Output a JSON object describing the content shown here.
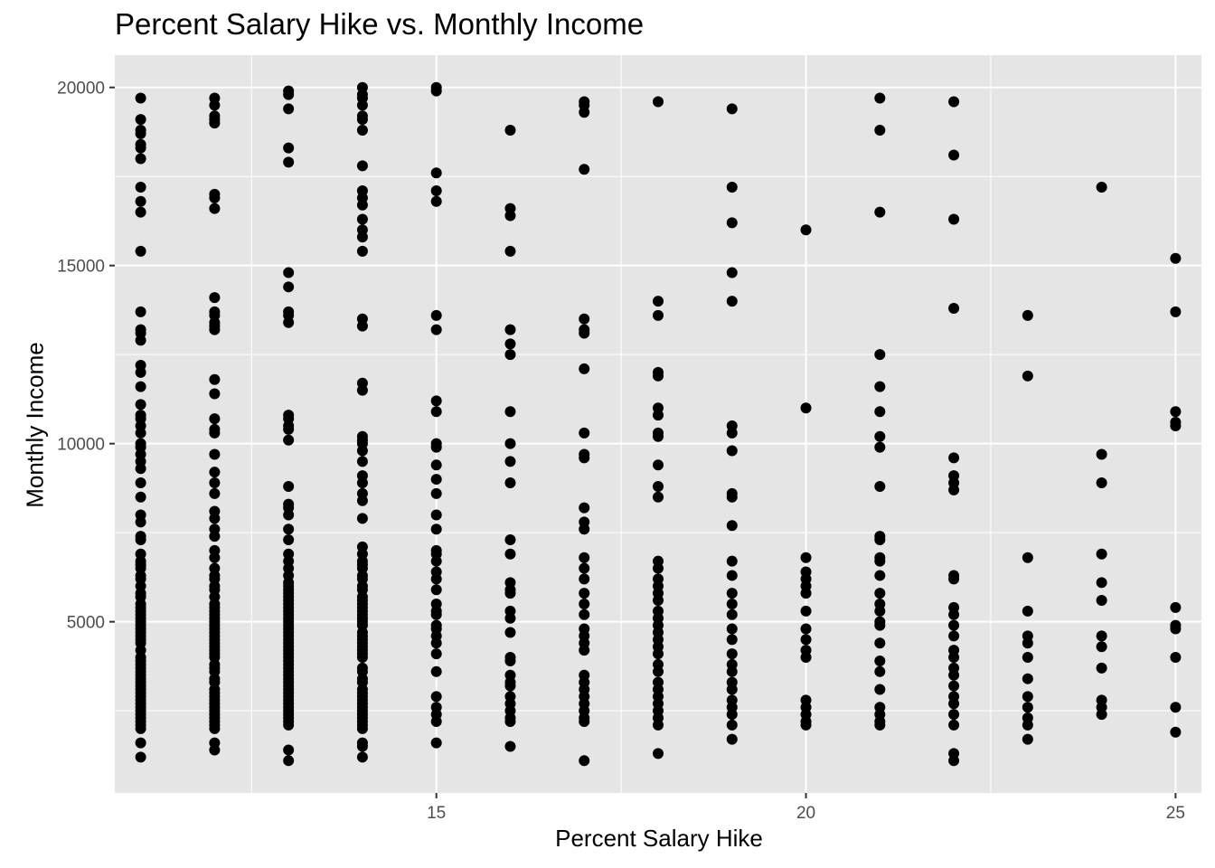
{
  "chart_data": {
    "type": "scatter",
    "title": "Percent Salary Hike vs. Monthly Income",
    "xlabel": "Percent Salary Hike",
    "ylabel": "Monthly Income",
    "xlim": [
      10.65,
      25.35
    ],
    "ylim": [
      194,
      20906
    ],
    "x_ticks": [
      15,
      20,
      25
    ],
    "y_ticks": [
      5000,
      10000,
      15000,
      20000
    ],
    "grid": true,
    "panel_background": "#e5e5e5",
    "grid_color": "#ffffff",
    "point_color": "#000000",
    "points": [
      {
        "x": 11,
        "y": [
          1200,
          1600,
          2000,
          2100,
          2200,
          2300,
          2400,
          2500,
          2600,
          2700,
          2800,
          2900,
          3000,
          3100,
          3200,
          3300,
          3400,
          3500,
          3600,
          3700,
          3800,
          3900,
          4000,
          4200,
          4400,
          4500,
          4600,
          4700,
          4800,
          4900,
          5000,
          5100,
          5200,
          5300,
          5400,
          5500,
          5700,
          5800,
          6000,
          6200,
          6300,
          6500,
          6600,
          6700,
          6900,
          7300,
          7400,
          7800,
          8000,
          8500,
          8900,
          9300,
          9500,
          9700,
          9900,
          10000,
          10300,
          10500,
          10700,
          10800,
          11100,
          11600,
          12000,
          12200,
          12900,
          13100,
          13200,
          13700,
          15400,
          16500,
          16800,
          17200,
          18000,
          18300,
          18400,
          18700,
          18800,
          19100,
          19700
        ]
      },
      {
        "x": 12,
        "y": [
          1400,
          1600,
          2000,
          2100,
          2200,
          2300,
          2400,
          2500,
          2600,
          2700,
          2800,
          2900,
          3000,
          3100,
          3300,
          3400,
          3600,
          3700,
          3800,
          4000,
          4100,
          4200,
          4300,
          4400,
          4500,
          4600,
          4700,
          4800,
          4900,
          5000,
          5100,
          5200,
          5300,
          5400,
          5500,
          5700,
          5900,
          6000,
          6200,
          6300,
          6500,
          6800,
          7000,
          7400,
          7600,
          7900,
          8100,
          8600,
          8900,
          9200,
          9700,
          10300,
          10400,
          10700,
          11400,
          11800,
          13200,
          13300,
          13400,
          13600,
          13700,
          14100,
          16600,
          16900,
          17000,
          19000,
          19100,
          19200,
          19500,
          19700
        ]
      },
      {
        "x": 13,
        "y": [
          1100,
          1400,
          2100,
          2200,
          2300,
          2400,
          2500,
          2600,
          2700,
          2800,
          2900,
          3000,
          3100,
          3200,
          3300,
          3400,
          3500,
          3600,
          3700,
          3800,
          3900,
          4000,
          4100,
          4200,
          4300,
          4400,
          4500,
          4600,
          4700,
          4800,
          4900,
          5000,
          5100,
          5200,
          5300,
          5400,
          5500,
          5600,
          5700,
          5800,
          5900,
          6000,
          6100,
          6300,
          6500,
          6700,
          6900,
          7300,
          7600,
          8000,
          8200,
          8300,
          8800,
          10100,
          10400,
          10500,
          10700,
          10800,
          13400,
          13600,
          13700,
          14400,
          14800,
          17900,
          18300,
          19400,
          19800,
          19900
        ]
      },
      {
        "x": 14,
        "y": [
          1200,
          1500,
          1600,
          2000,
          2100,
          2200,
          2300,
          2400,
          2500,
          2600,
          2700,
          2800,
          2900,
          3000,
          3100,
          3300,
          3400,
          3600,
          3700,
          4000,
          4100,
          4200,
          4300,
          4400,
          4500,
          4600,
          4700,
          4900,
          5000,
          5100,
          5200,
          5300,
          5400,
          5500,
          5600,
          5700,
          5900,
          6000,
          6200,
          6300,
          6500,
          6600,
          6700,
          6900,
          7100,
          7900,
          8400,
          8600,
          8900,
          9100,
          9500,
          9800,
          10000,
          10100,
          10200,
          11500,
          11700,
          13300,
          13500,
          15400,
          15800,
          16000,
          16300,
          16700,
          16900,
          17100,
          17800,
          18800,
          19100,
          19200,
          19500,
          19700,
          19800,
          20000
        ]
      },
      {
        "x": 15,
        "y": [
          1600,
          2200,
          2400,
          2600,
          2900,
          3600,
          4100,
          4400,
          4600,
          4800,
          4900,
          5200,
          5300,
          5500,
          5900,
          6200,
          6400,
          6700,
          6900,
          7000,
          7600,
          8000,
          8600,
          9000,
          9400,
          9900,
          10000,
          10900,
          11200,
          13200,
          13600,
          16800,
          17100,
          17600,
          19900,
          20000
        ]
      },
      {
        "x": 16,
        "y": [
          1500,
          2200,
          2300,
          2500,
          2700,
          2900,
          3200,
          3300,
          3500,
          3900,
          4000,
          4700,
          5100,
          5300,
          5800,
          5900,
          6100,
          6900,
          7300,
          8900,
          9500,
          10000,
          10900,
          12500,
          12800,
          13200,
          15400,
          16400,
          16600,
          18800
        ]
      },
      {
        "x": 17,
        "y": [
          1100,
          2200,
          2300,
          2500,
          2700,
          2900,
          3100,
          3300,
          3500,
          4200,
          4400,
          4600,
          4800,
          5200,
          5500,
          5800,
          6200,
          6500,
          6800,
          7600,
          7800,
          8200,
          9600,
          9700,
          10300,
          12100,
          13100,
          13200,
          13500,
          17700,
          19300,
          19500,
          19600
        ]
      },
      {
        "x": 18,
        "y": [
          1300,
          2100,
          2300,
          2500,
          2700,
          2900,
          3100,
          3300,
          3600,
          3800,
          4100,
          4300,
          4500,
          4700,
          4900,
          5100,
          5300,
          5600,
          5800,
          6000,
          6200,
          6500,
          6700,
          8500,
          8800,
          9400,
          10200,
          10300,
          10800,
          11000,
          11900,
          12000,
          13600,
          14000,
          19600
        ]
      },
      {
        "x": 19,
        "y": [
          1700,
          2100,
          2400,
          2600,
          2800,
          3100,
          3300,
          3600,
          3800,
          4100,
          4500,
          4800,
          5200,
          5500,
          5800,
          6300,
          6700,
          7700,
          8500,
          8600,
          9800,
          10300,
          10500,
          14000,
          14800,
          16200,
          17200,
          19400
        ]
      },
      {
        "x": 20,
        "y": [
          2100,
          2200,
          2400,
          2600,
          2800,
          4000,
          4200,
          4500,
          4800,
          5300,
          5800,
          6000,
          6200,
          6400,
          6800,
          11000,
          16000
        ]
      },
      {
        "x": 21,
        "y": [
          2100,
          2200,
          2400,
          2600,
          3100,
          3600,
          3900,
          4400,
          4900,
          5000,
          5300,
          5500,
          5800,
          6300,
          6700,
          6800,
          7300,
          7400,
          8800,
          9900,
          10200,
          10900,
          11600,
          12500,
          16500,
          18800,
          19700
        ]
      },
      {
        "x": 22,
        "y": [
          1100,
          1300,
          2100,
          2400,
          2700,
          2900,
          3200,
          3500,
          3700,
          4000,
          4200,
          4600,
          4900,
          5200,
          5400,
          6200,
          6300,
          8700,
          8900,
          9100,
          9600,
          13800,
          16300,
          18100,
          19600
        ]
      },
      {
        "x": 23,
        "y": [
          1700,
          2100,
          2300,
          2600,
          2900,
          3400,
          4000,
          4400,
          4600,
          5300,
          6800,
          11900,
          13600
        ]
      },
      {
        "x": 24,
        "y": [
          2400,
          2600,
          2800,
          3700,
          4300,
          4600,
          5600,
          6100,
          6900,
          8900,
          9700,
          17200
        ]
      },
      {
        "x": 25,
        "y": [
          1900,
          2600,
          4000,
          4800,
          4900,
          5400,
          10500,
          10600,
          10900,
          13700,
          15200
        ]
      }
    ]
  }
}
